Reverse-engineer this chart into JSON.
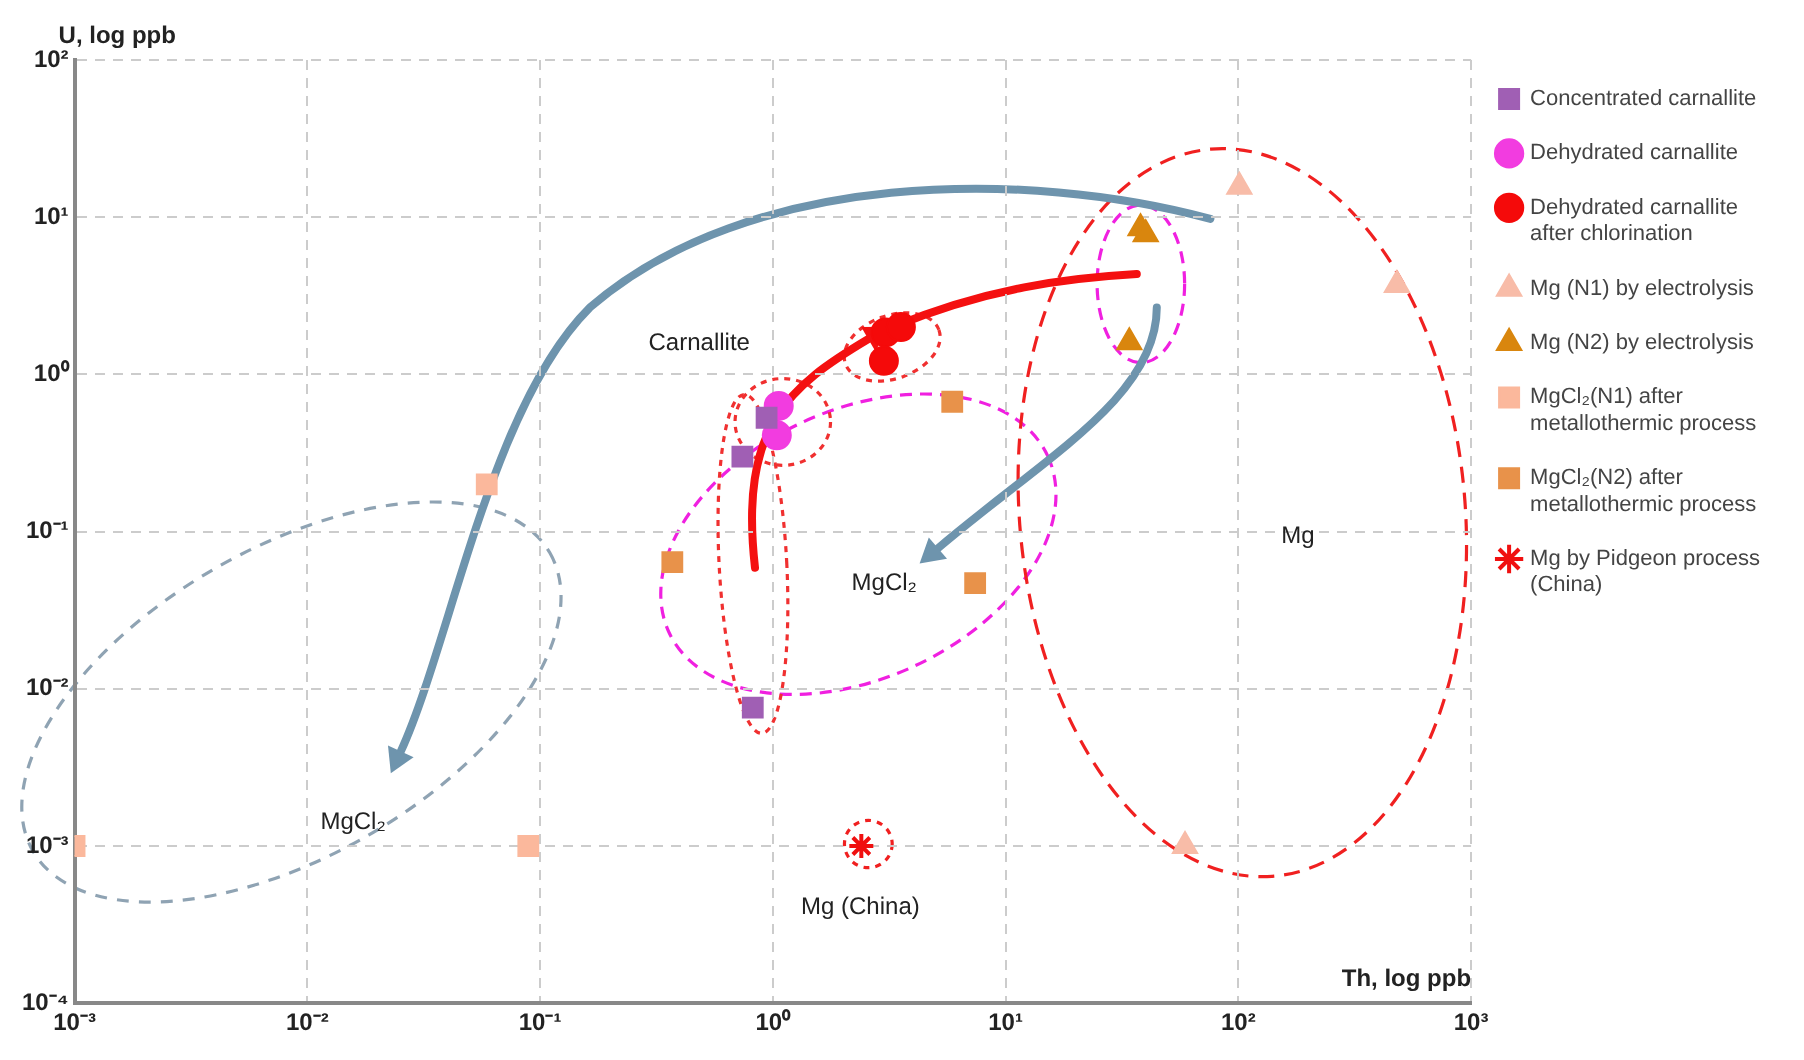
{
  "chart_data": {
    "type": "scatter",
    "xlabel": "Th, log ppb",
    "ylabel": "U, log ppb",
    "log": "xy",
    "grid": true,
    "legend": "right",
    "xlim": [
      0.001,
      1000
    ],
    "ylim": [
      0.0001,
      100
    ],
    "xticks": [
      {
        "value": 0.001,
        "label": "10⁻³"
      },
      {
        "value": 0.01,
        "label": "10⁻²"
      },
      {
        "value": 0.1,
        "label": "10⁻¹"
      },
      {
        "value": 1,
        "label": "10⁰"
      },
      {
        "value": 10,
        "label": "10¹"
      },
      {
        "value": 100,
        "label": "10²"
      },
      {
        "value": 1000,
        "label": "10³"
      }
    ],
    "yticks": [
      {
        "value": 0.0001,
        "label": "10⁻⁴"
      },
      {
        "value": 0.001,
        "label": "10⁻³"
      },
      {
        "value": 0.01,
        "label": "10⁻²"
      },
      {
        "value": 0.1,
        "label": "10⁻¹"
      },
      {
        "value": 1,
        "label": "10⁰"
      },
      {
        "value": 10,
        "label": "10¹"
      },
      {
        "value": 100,
        "label": "10²"
      }
    ],
    "series": [
      {
        "name": "Concentrated carnallite",
        "color": "#a05fb4",
        "marker": "square",
        "x": [
          0.94,
          0.74,
          0.82
        ],
        "values": [
          0.53,
          0.3,
          0.0076
        ]
      },
      {
        "name": "Dehydrated carnallite",
        "color": "#f23ce0",
        "marker": "circle",
        "x": [
          1.06,
          1.04
        ],
        "values": [
          0.63,
          0.41
        ]
      },
      {
        "name": "Dehydrated carnallite after chlorination",
        "color": "#f50a0a",
        "marker": "circle",
        "x": [
          3.05,
          3.55,
          3.0
        ],
        "values": [
          1.85,
          2.0,
          1.22
        ]
      },
      {
        "name": "Mg (N1) by electrolysis",
        "color": "#f8bca8",
        "marker": "triangle",
        "x": [
          101,
          480,
          59
        ],
        "values": [
          15.6,
          3.7,
          0.001
        ]
      },
      {
        "name": "Mg (N2) by electrolysis",
        "color": "#d9860e",
        "marker": "triangle",
        "x": [
          38,
          40,
          34
        ],
        "values": [
          8.5,
          7.8,
          1.6
        ]
      },
      {
        "name": "MgCl₂(N1) after metallothermic process",
        "color": "#fbb89c",
        "marker": "square",
        "x": [
          0.059,
          0.001,
          0.089
        ],
        "values": [
          0.2,
          0.001,
          0.001
        ]
      },
      {
        "name": "MgCl₂(N2) after metallothermic process",
        "color": "#e8924a",
        "marker": "square",
        "x": [
          0.37,
          5.9,
          7.4
        ],
        "values": [
          0.064,
          0.67,
          0.047
        ]
      },
      {
        "name": "Mg by Pidgeon process (China)",
        "color": "#f01010",
        "marker": "cross",
        "x": [
          2.4
        ],
        "values": [
          0.001
        ]
      }
    ],
    "annotations": [
      "Carnallite",
      "MgCl₂",
      "MgCl₂",
      "Mg",
      "Mg (China)"
    ]
  }
}
